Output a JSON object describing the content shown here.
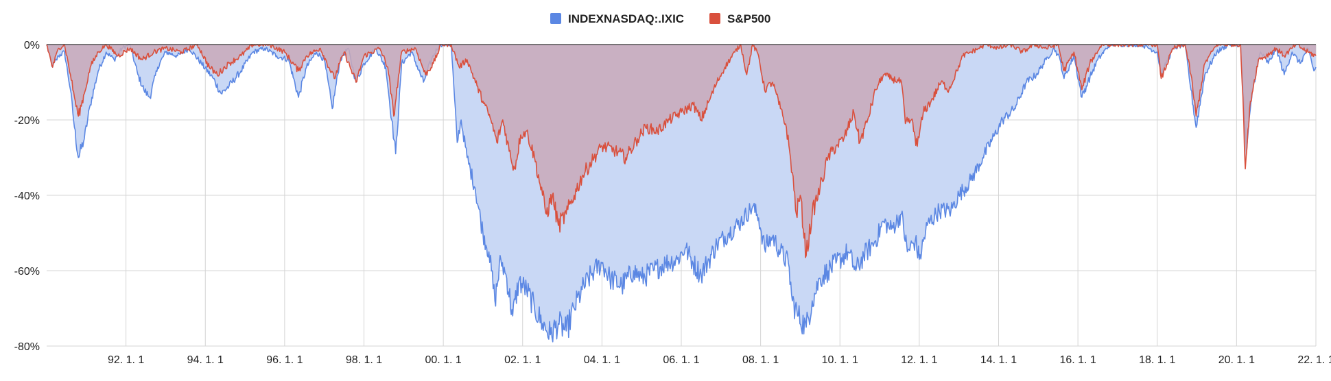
{
  "chart_data": {
    "type": "area",
    "title": "",
    "xlabel": "",
    "ylabel": "",
    "xlim": [
      1990.0,
      2022.0
    ],
    "ylim": [
      -80,
      0
    ],
    "y_ticks": [
      {
        "value": 0,
        "label": "0%"
      },
      {
        "value": -20,
        "label": "-20%"
      },
      {
        "value": -40,
        "label": "-40%"
      },
      {
        "value": -60,
        "label": "-60%"
      },
      {
        "value": -80,
        "label": "-80%"
      }
    ],
    "x_ticks": [
      {
        "value": 1992,
        "label": "92. 1. 1"
      },
      {
        "value": 1994,
        "label": "94. 1. 1"
      },
      {
        "value": 1996,
        "label": "96. 1. 1"
      },
      {
        "value": 1998,
        "label": "98. 1. 1"
      },
      {
        "value": 2000,
        "label": "00. 1. 1"
      },
      {
        "value": 2002,
        "label": "02. 1. 1"
      },
      {
        "value": 2004,
        "label": "04. 1. 1"
      },
      {
        "value": 2006,
        "label": "06. 1. 1"
      },
      {
        "value": 2008,
        "label": "08. 1. 1"
      },
      {
        "value": 2010,
        "label": "10. 1. 1"
      },
      {
        "value": 2012,
        "label": "12. 1. 1"
      },
      {
        "value": 2014,
        "label": "14. 1. 1"
      },
      {
        "value": 2016,
        "label": "16. 1. 1"
      },
      {
        "value": 2018,
        "label": "18. 1. 1"
      },
      {
        "value": 2020,
        "label": "20. 1. 1"
      },
      {
        "value": 2022,
        "label": "22. 1. 1"
      }
    ],
    "grid": true,
    "legend_position": "top-center",
    "series": [
      {
        "name": "INDEXNASDAQ:.IXIC",
        "color": "#5b87e3",
        "fill": "#c9d8f5",
        "points": [
          [
            1990.0,
            0
          ],
          [
            1990.15,
            -6
          ],
          [
            1990.3,
            -3
          ],
          [
            1990.45,
            -2
          ],
          [
            1990.6,
            -12
          ],
          [
            1990.7,
            -22
          ],
          [
            1990.8,
            -30
          ],
          [
            1990.95,
            -25
          ],
          [
            1991.1,
            -16
          ],
          [
            1991.3,
            -7
          ],
          [
            1991.5,
            -2
          ],
          [
            1991.7,
            -4
          ],
          [
            1991.9,
            -1
          ],
          [
            1992.1,
            0
          ],
          [
            1992.3,
            -8
          ],
          [
            1992.45,
            -12
          ],
          [
            1992.6,
            -14
          ],
          [
            1992.8,
            -6
          ],
          [
            1993.0,
            -2
          ],
          [
            1993.3,
            -3
          ],
          [
            1993.6,
            -1
          ],
          [
            1993.9,
            -5
          ],
          [
            1994.2,
            -9
          ],
          [
            1994.4,
            -13
          ],
          [
            1994.6,
            -11
          ],
          [
            1994.9,
            -7
          ],
          [
            1995.2,
            -2
          ],
          [
            1995.5,
            -1
          ],
          [
            1995.8,
            -3
          ],
          [
            1996.1,
            -4
          ],
          [
            1996.35,
            -14
          ],
          [
            1996.55,
            -6
          ],
          [
            1996.8,
            -2
          ],
          [
            1997.0,
            -4
          ],
          [
            1997.2,
            -17
          ],
          [
            1997.4,
            -4
          ],
          [
            1997.6,
            -1
          ],
          [
            1997.8,
            -10
          ],
          [
            1998.0,
            -5
          ],
          [
            1998.3,
            -1
          ],
          [
            1998.55,
            -6
          ],
          [
            1998.7,
            -20
          ],
          [
            1998.8,
            -29
          ],
          [
            1998.95,
            -5
          ],
          [
            1999.2,
            -2
          ],
          [
            1999.5,
            -10
          ],
          [
            1999.7,
            -4
          ],
          [
            1999.9,
            0
          ],
          [
            2000.2,
            0
          ],
          [
            2000.35,
            -26
          ],
          [
            2000.45,
            -20
          ],
          [
            2000.6,
            -30
          ],
          [
            2000.8,
            -38
          ],
          [
            2001.0,
            -50
          ],
          [
            2001.15,
            -55
          ],
          [
            2001.3,
            -68
          ],
          [
            2001.45,
            -57
          ],
          [
            2001.6,
            -62
          ],
          [
            2001.75,
            -72
          ],
          [
            2001.9,
            -63
          ],
          [
            2002.1,
            -65
          ],
          [
            2002.3,
            -70
          ],
          [
            2002.5,
            -74
          ],
          [
            2002.7,
            -77
          ],
          [
            2002.9,
            -74
          ],
          [
            2003.1,
            -76
          ],
          [
            2003.3,
            -70
          ],
          [
            2003.5,
            -65
          ],
          [
            2003.8,
            -60
          ],
          [
            2004.0,
            -58
          ],
          [
            2004.2,
            -62
          ],
          [
            2004.5,
            -64
          ],
          [
            2004.8,
            -60
          ],
          [
            2005.0,
            -62
          ],
          [
            2005.3,
            -60
          ],
          [
            2005.6,
            -58
          ],
          [
            2005.9,
            -57
          ],
          [
            2006.1,
            -54
          ],
          [
            2006.3,
            -58
          ],
          [
            2006.5,
            -61
          ],
          [
            2006.7,
            -57
          ],
          [
            2006.9,
            -53
          ],
          [
            2007.2,
            -50
          ],
          [
            2007.5,
            -47
          ],
          [
            2007.8,
            -43
          ],
          [
            2007.95,
            -46
          ],
          [
            2008.1,
            -54
          ],
          [
            2008.3,
            -51
          ],
          [
            2008.5,
            -55
          ],
          [
            2008.7,
            -58
          ],
          [
            2008.8,
            -68
          ],
          [
            2008.95,
            -72
          ],
          [
            2009.15,
            -75
          ],
          [
            2009.3,
            -68
          ],
          [
            2009.5,
            -62
          ],
          [
            2009.7,
            -60
          ],
          [
            2009.9,
            -58
          ],
          [
            2010.2,
            -55
          ],
          [
            2010.4,
            -60
          ],
          [
            2010.6,
            -56
          ],
          [
            2010.9,
            -52
          ],
          [
            2011.1,
            -47
          ],
          [
            2011.3,
            -49
          ],
          [
            2011.55,
            -45
          ],
          [
            2011.7,
            -55
          ],
          [
            2011.9,
            -52
          ],
          [
            2012.0,
            -57
          ],
          [
            2012.2,
            -48
          ],
          [
            2012.5,
            -44
          ],
          [
            2012.8,
            -44
          ],
          [
            2013.0,
            -40
          ],
          [
            2013.3,
            -36
          ],
          [
            2013.6,
            -30
          ],
          [
            2013.9,
            -24
          ],
          [
            2014.1,
            -20
          ],
          [
            2014.4,
            -17
          ],
          [
            2014.7,
            -10
          ],
          [
            2014.95,
            -8
          ],
          [
            2015.2,
            -4
          ],
          [
            2015.4,
            -1
          ],
          [
            2015.55,
            -4
          ],
          [
            2015.65,
            -9
          ],
          [
            2015.9,
            -3
          ],
          [
            2016.1,
            -14
          ],
          [
            2016.25,
            -10
          ],
          [
            2016.5,
            -4
          ],
          [
            2016.8,
            0
          ],
          [
            2017.2,
            0
          ],
          [
            2017.6,
            0
          ],
          [
            2018.0,
            -2
          ],
          [
            2018.1,
            -8
          ],
          [
            2018.4,
            -1
          ],
          [
            2018.7,
            0
          ],
          [
            2018.85,
            -12
          ],
          [
            2018.98,
            -22
          ],
          [
            2019.2,
            -8
          ],
          [
            2019.5,
            -2
          ],
          [
            2019.8,
            0
          ],
          [
            2020.1,
            0
          ],
          [
            2020.2,
            -20
          ],
          [
            2020.25,
            -28
          ],
          [
            2020.4,
            -12
          ],
          [
            2020.6,
            -2
          ],
          [
            2020.8,
            -5
          ],
          [
            2021.0,
            -1
          ],
          [
            2021.2,
            -8
          ],
          [
            2021.4,
            -2
          ],
          [
            2021.6,
            -5
          ],
          [
            2021.8,
            -1
          ],
          [
            2021.95,
            -7
          ],
          [
            2022.0,
            -6
          ]
        ]
      },
      {
        "name": "S&P500",
        "color": "#d9503d",
        "fill": "#c9a9b8",
        "points": [
          [
            1990.0,
            0
          ],
          [
            1990.15,
            -6
          ],
          [
            1990.3,
            -1
          ],
          [
            1990.45,
            0
          ],
          [
            1990.6,
            -8
          ],
          [
            1990.7,
            -14
          ],
          [
            1990.8,
            -19
          ],
          [
            1990.95,
            -13
          ],
          [
            1991.1,
            -6
          ],
          [
            1991.3,
            -2
          ],
          [
            1991.5,
            0
          ],
          [
            1991.8,
            -3
          ],
          [
            1992.1,
            -1
          ],
          [
            1992.4,
            -4
          ],
          [
            1992.7,
            -2
          ],
          [
            1993.0,
            -1
          ],
          [
            1993.4,
            -2
          ],
          [
            1993.8,
            0
          ],
          [
            1994.1,
            -6
          ],
          [
            1994.3,
            -8
          ],
          [
            1994.6,
            -5
          ],
          [
            1994.9,
            -3
          ],
          [
            1995.2,
            0
          ],
          [
            1995.6,
            0
          ],
          [
            1996.0,
            -2
          ],
          [
            1996.35,
            -7
          ],
          [
            1996.55,
            -3
          ],
          [
            1996.9,
            -1
          ],
          [
            1997.25,
            -9
          ],
          [
            1997.5,
            -2
          ],
          [
            1997.8,
            -10
          ],
          [
            1998.0,
            -3
          ],
          [
            1998.4,
            -1
          ],
          [
            1998.6,
            -6
          ],
          [
            1998.75,
            -19
          ],
          [
            1998.95,
            -2
          ],
          [
            1999.3,
            -1
          ],
          [
            1999.55,
            -8
          ],
          [
            1999.75,
            -5
          ],
          [
            1999.95,
            0
          ],
          [
            2000.2,
            0
          ],
          [
            2000.4,
            -6
          ],
          [
            2000.6,
            -4
          ],
          [
            2000.85,
            -11
          ],
          [
            2001.0,
            -15
          ],
          [
            2001.2,
            -20
          ],
          [
            2001.35,
            -26
          ],
          [
            2001.5,
            -20
          ],
          [
            2001.7,
            -30
          ],
          [
            2001.8,
            -33
          ],
          [
            2001.95,
            -24
          ],
          [
            2002.1,
            -23
          ],
          [
            2002.3,
            -30
          ],
          [
            2002.5,
            -40
          ],
          [
            2002.6,
            -45
          ],
          [
            2002.75,
            -40
          ],
          [
            2002.9,
            -48
          ],
          [
            2003.1,
            -45
          ],
          [
            2003.3,
            -40
          ],
          [
            2003.5,
            -35
          ],
          [
            2003.8,
            -30
          ],
          [
            2004.0,
            -27
          ],
          [
            2004.3,
            -28
          ],
          [
            2004.6,
            -30
          ],
          [
            2004.9,
            -25
          ],
          [
            2005.1,
            -22
          ],
          [
            2005.4,
            -23
          ],
          [
            2005.7,
            -20
          ],
          [
            2006.0,
            -18
          ],
          [
            2006.3,
            -16
          ],
          [
            2006.5,
            -20
          ],
          [
            2006.7,
            -15
          ],
          [
            2006.9,
            -10
          ],
          [
            2007.1,
            -6
          ],
          [
            2007.35,
            -2
          ],
          [
            2007.5,
            0
          ],
          [
            2007.65,
            -8
          ],
          [
            2007.8,
            0
          ],
          [
            2007.95,
            -3
          ],
          [
            2008.1,
            -12
          ],
          [
            2008.3,
            -10
          ],
          [
            2008.5,
            -17
          ],
          [
            2008.65,
            -22
          ],
          [
            2008.8,
            -34
          ],
          [
            2008.9,
            -45
          ],
          [
            2009.0,
            -40
          ],
          [
            2009.15,
            -56
          ],
          [
            2009.3,
            -45
          ],
          [
            2009.5,
            -38
          ],
          [
            2009.7,
            -30
          ],
          [
            2009.9,
            -27
          ],
          [
            2010.1,
            -25
          ],
          [
            2010.35,
            -18
          ],
          [
            2010.5,
            -26
          ],
          [
            2010.7,
            -20
          ],
          [
            2010.9,
            -12
          ],
          [
            2011.1,
            -8
          ],
          [
            2011.3,
            -9
          ],
          [
            2011.55,
            -10
          ],
          [
            2011.65,
            -21
          ],
          [
            2011.8,
            -20
          ],
          [
            2011.95,
            -27
          ],
          [
            2012.1,
            -18
          ],
          [
            2012.3,
            -15
          ],
          [
            2012.55,
            -10
          ],
          [
            2012.75,
            -12
          ],
          [
            2012.95,
            -7
          ],
          [
            2013.1,
            -3
          ],
          [
            2013.3,
            -2
          ],
          [
            2013.5,
            -1
          ],
          [
            2013.7,
            0
          ],
          [
            2014.0,
            -1
          ],
          [
            2014.3,
            0
          ],
          [
            2014.6,
            -2
          ],
          [
            2014.9,
            0
          ],
          [
            2015.2,
            -1
          ],
          [
            2015.5,
            0
          ],
          [
            2015.65,
            -7
          ],
          [
            2015.9,
            -2
          ],
          [
            2016.1,
            -12
          ],
          [
            2016.3,
            -5
          ],
          [
            2016.6,
            0
          ],
          [
            2017.0,
            0
          ],
          [
            2017.5,
            0
          ],
          [
            2018.0,
            0
          ],
          [
            2018.1,
            -9
          ],
          [
            2018.4,
            -1
          ],
          [
            2018.7,
            0
          ],
          [
            2018.85,
            -8
          ],
          [
            2018.98,
            -19
          ],
          [
            2019.2,
            -5
          ],
          [
            2019.5,
            0
          ],
          [
            2019.9,
            0
          ],
          [
            2020.1,
            0
          ],
          [
            2020.18,
            -20
          ],
          [
            2020.22,
            -33
          ],
          [
            2020.35,
            -15
          ],
          [
            2020.55,
            -4
          ],
          [
            2020.75,
            -3
          ],
          [
            2021.0,
            -1
          ],
          [
            2021.2,
            -3
          ],
          [
            2021.5,
            0
          ],
          [
            2021.8,
            -2
          ],
          [
            2022.0,
            -3
          ]
        ]
      }
    ]
  }
}
